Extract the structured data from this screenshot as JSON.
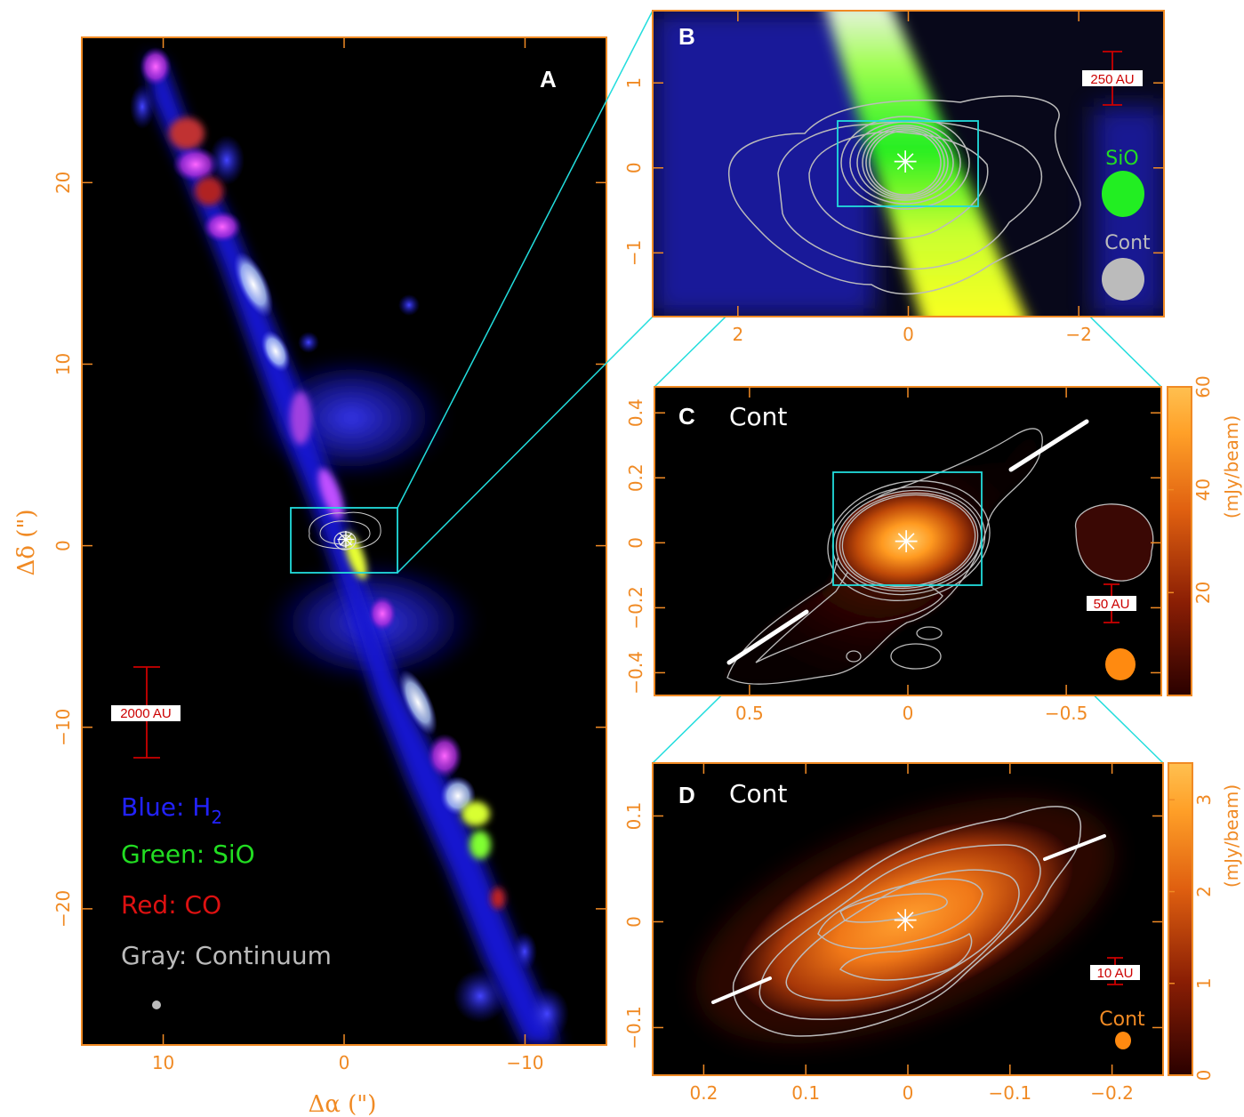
{
  "chart_data": [
    {
      "panel": "A",
      "type": "image",
      "xlabel": "Δα (\")",
      "ylabel": "Δδ (\")",
      "xlim": [
        14.5,
        -14.5
      ],
      "ylim": [
        -27.5,
        28
      ],
      "xticks": [
        10,
        0,
        -10
      ],
      "yticks": [
        20,
        10,
        0,
        -10,
        -20
      ],
      "legend": [
        {
          "label": "Blue: H",
          "sub": "2",
          "color": "#2222ff"
        },
        {
          "label": "Green: SiO",
          "color": "#22dd22"
        },
        {
          "label": "Red: CO",
          "color": "#dd1111"
        },
        {
          "label": "Gray: Continuum",
          "color": "#bbbbbb"
        }
      ],
      "scale_bar": "2000 AU",
      "zoom_box": {
        "x": [
          3,
          -3
        ],
        "y": [
          1.7,
          -1.7
        ]
      }
    },
    {
      "panel": "B",
      "type": "image",
      "xlim": [
        3,
        -3
      ],
      "ylim": [
        -1.75,
        1.85
      ],
      "xticks": [
        2,
        0,
        -2
      ],
      "yticks": [
        1,
        0,
        -1
      ],
      "beam_labels": [
        {
          "label": "SiO",
          "color": "#22dd22"
        },
        {
          "label": "Cont",
          "color": "#bbbbbb"
        }
      ],
      "scale_bar": "250 AU",
      "zoom_box": {
        "x": [
          0.8,
          -0.8
        ],
        "y": [
          0.5,
          -0.5
        ]
      }
    },
    {
      "panel": "C",
      "title": "Cont",
      "type": "heatmap",
      "xlim": [
        0.8,
        -0.8
      ],
      "ylim": [
        -0.47,
        0.48
      ],
      "xticks": [
        0.5,
        0,
        -0.5
      ],
      "yticks": [
        0.4,
        0.2,
        0,
        -0.2,
        -0.4
      ],
      "colorbar": {
        "label": "(mJy/beam)",
        "range": [
          0,
          60
        ],
        "ticks": [
          20,
          40,
          60
        ]
      },
      "scale_bar": "50 AU",
      "zoom_box": {
        "x": [
          0.25,
          -0.25
        ],
        "y": [
          0.15,
          -0.15
        ]
      }
    },
    {
      "panel": "D",
      "title": "Cont",
      "type": "heatmap",
      "xlim": [
        0.25,
        -0.25
      ],
      "ylim": [
        -0.145,
        0.15
      ],
      "xticks": [
        0.2,
        0.1,
        0,
        -0.1,
        -0.2
      ],
      "yticks": [
        0.1,
        0,
        -0.1
      ],
      "colorbar": {
        "label": "(mJy/beam)",
        "range": [
          0,
          3.4
        ],
        "ticks": [
          0,
          1,
          2,
          3
        ]
      },
      "scale_bar": "10 AU",
      "beam_label": {
        "label": "Cont",
        "color": "#f08a24"
      }
    }
  ]
}
